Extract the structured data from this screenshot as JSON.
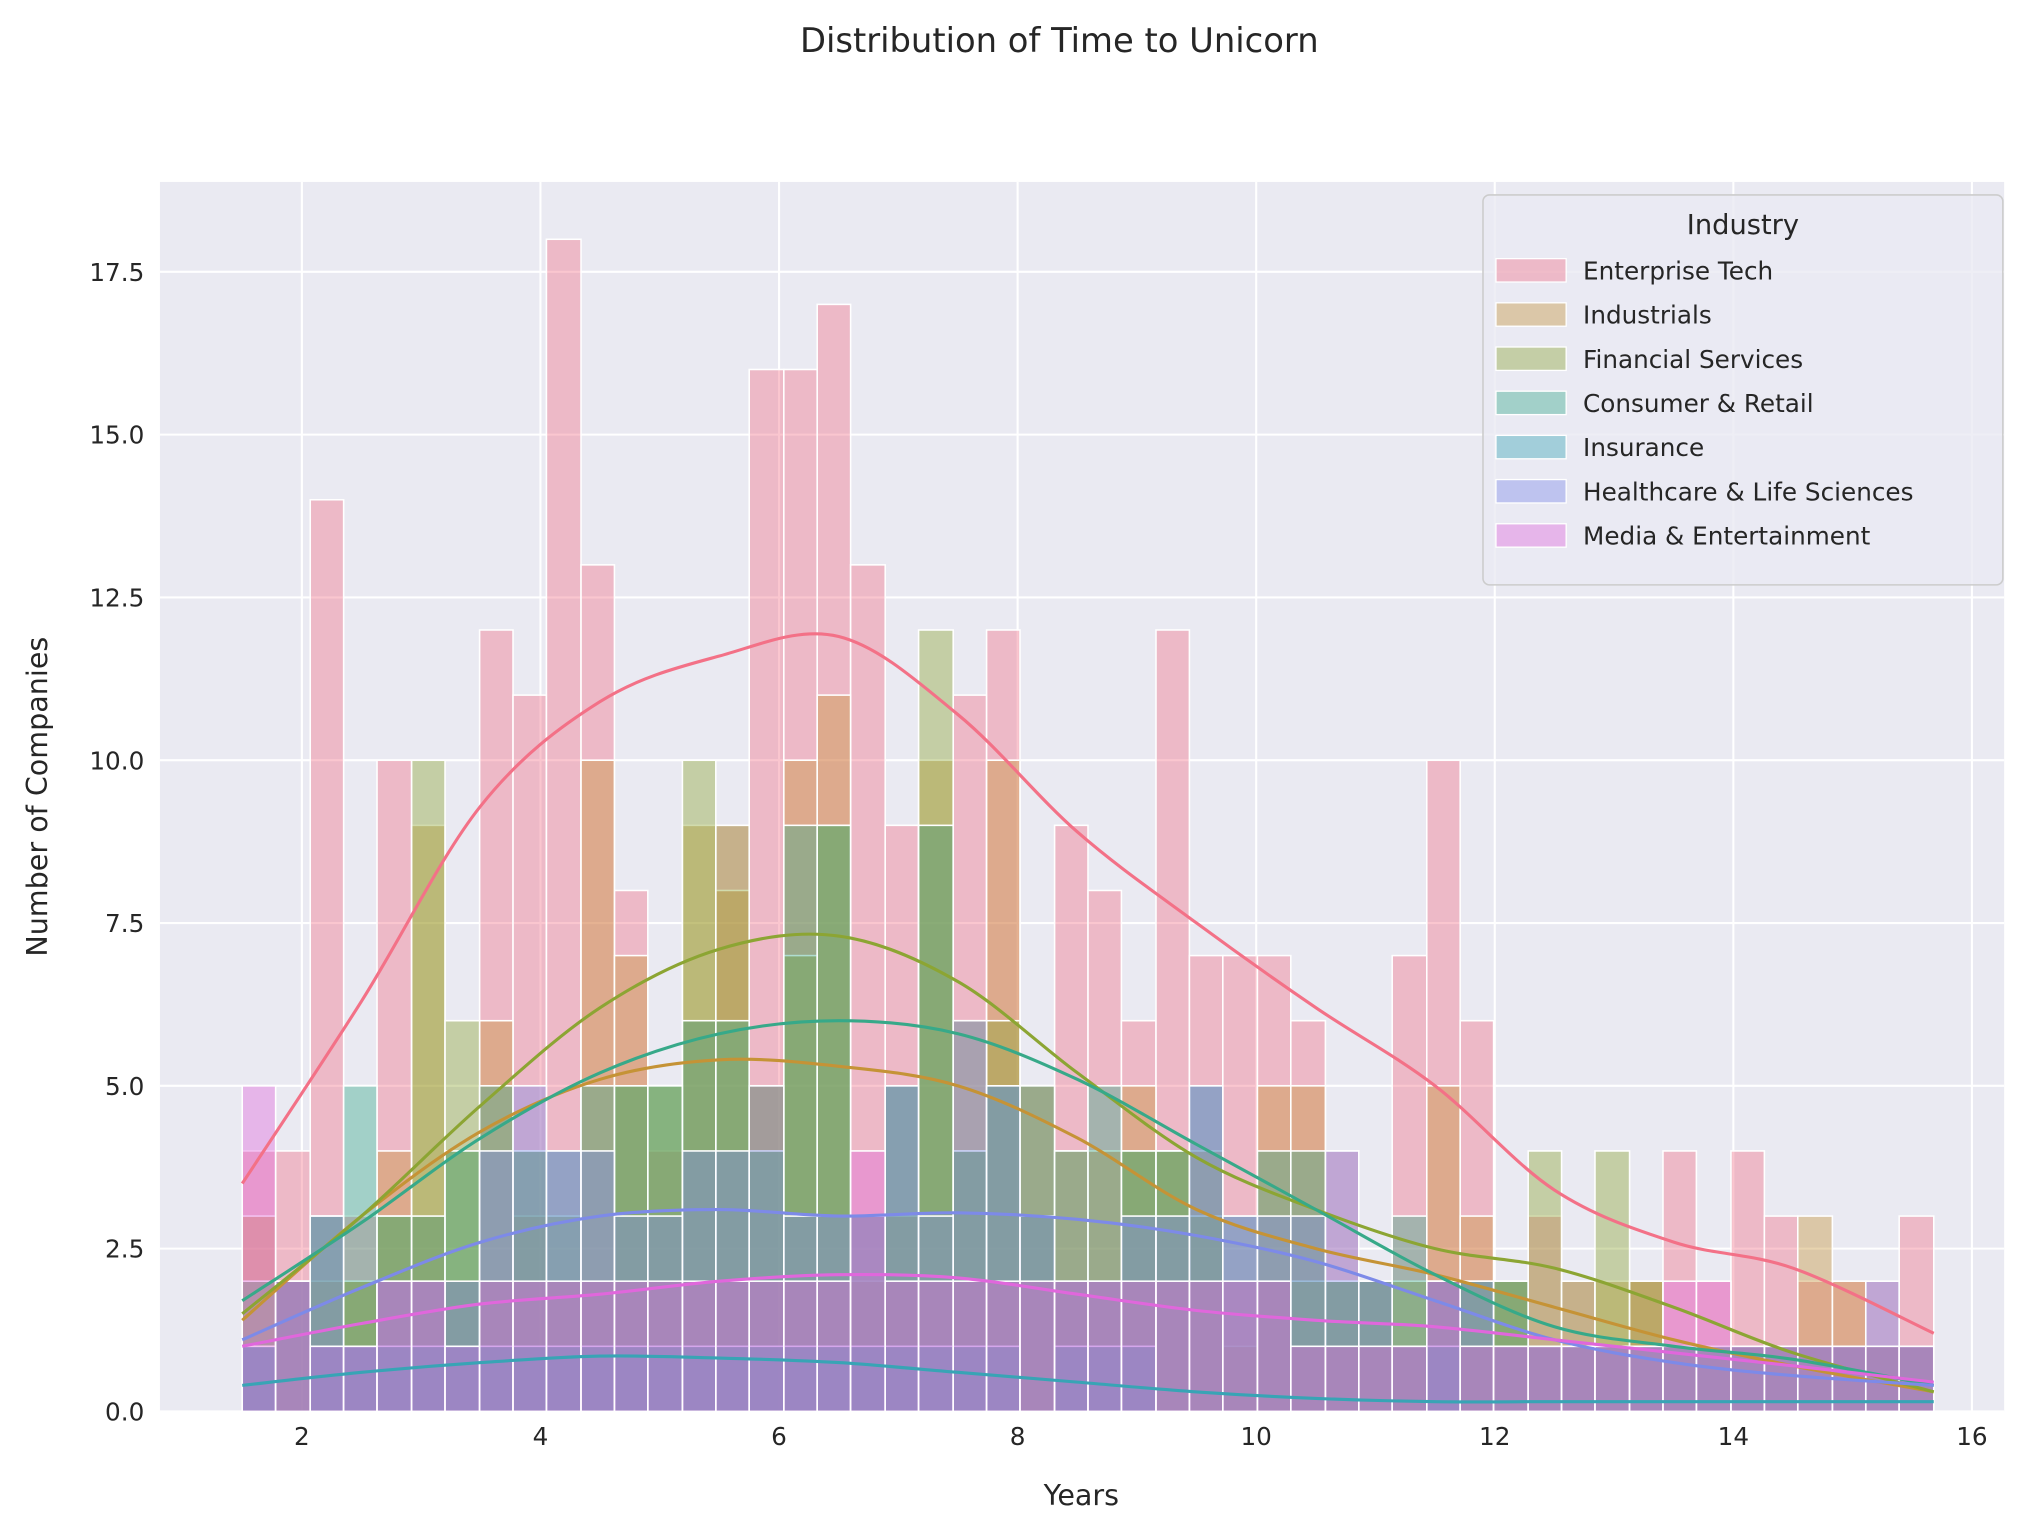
{
  "chart_data": {
    "type": "histogram",
    "title": "Distribution of Time to Unicorn",
    "x_label": "Years",
    "y_label": "Number of Companies",
    "legend_title": "Industry",
    "legend_position": "upper right",
    "grid": true,
    "xlim": [
      0.81,
      16.27
    ],
    "ylim": [
      0,
      18.88
    ],
    "xticks": [
      2,
      4,
      6,
      8,
      10,
      12,
      14,
      16
    ],
    "yticks": [
      {
        "value": 0,
        "label": "0.0"
      },
      2.5,
      {
        "value": 5,
        "label": "5.0"
      },
      7.5,
      {
        "value": 10,
        "label": "10.0"
      },
      12.5,
      {
        "value": 15,
        "label": "15.0"
      },
      17.5
    ],
    "bins": [
      1.5,
      1.78,
      2.07,
      2.35,
      2.63,
      2.92,
      3.2,
      3.49,
      3.77,
      4.05,
      4.34,
      4.62,
      4.9,
      5.19,
      5.47,
      5.75,
      6.04,
      6.32,
      6.6,
      6.89,
      7.17,
      7.46,
      7.74,
      8.02,
      8.31,
      8.59,
      8.87,
      9.16,
      9.44,
      9.72,
      10.01,
      10.29,
      10.58,
      10.86,
      11.14,
      11.43,
      11.71,
      11.99,
      12.28,
      12.56,
      12.84,
      13.13,
      13.41,
      13.69,
      13.98,
      14.26,
      14.54,
      14.83,
      15.11,
      15.39,
      15.68
    ],
    "kde_x": [
      1.5,
      2.5,
      3.5,
      4.5,
      5.5,
      6.5,
      7.5,
      8.5,
      9.5,
      10.5,
      11.5,
      12.5,
      13.5,
      14.5,
      15.68
    ],
    "series": [
      {
        "name": "Enterprise Tech",
        "color": "#f37187",
        "values": [
          4,
          4,
          14,
          3,
          10,
          3,
          2,
          12,
          11,
          18,
          13,
          8,
          4,
          6,
          9,
          16,
          16,
          17,
          13,
          9,
          9,
          11,
          12,
          5,
          9,
          8,
          6,
          12,
          7,
          7,
          7,
          6,
          4,
          2,
          7,
          10,
          6,
          2,
          3,
          2,
          1,
          2,
          4,
          2,
          4,
          3,
          2,
          2,
          2,
          3
        ],
        "kde": [
          3.5,
          6.3,
          9.3,
          10.9,
          11.6,
          11.9,
          10.7,
          8.9,
          7.5,
          6.2,
          5.0,
          3.4,
          2.6,
          2.2,
          1.2
        ]
      },
      {
        "name": "Industrials",
        "color": "#c59336",
        "values": [
          3,
          2,
          2,
          2,
          4,
          9,
          4,
          6,
          3,
          2,
          10,
          7,
          5,
          9,
          8,
          5,
          10,
          11,
          2,
          3,
          10,
          4,
          10,
          5,
          4,
          4,
          5,
          4,
          4,
          1,
          5,
          5,
          2,
          2,
          1,
          5,
          3,
          2,
          1,
          1,
          2,
          2,
          1,
          1,
          1,
          1,
          3,
          2,
          1,
          1
        ],
        "kde": [
          1.4,
          3.0,
          4.3,
          5.1,
          5.4,
          5.3,
          5.0,
          4.2,
          3.1,
          2.5,
          2.1,
          1.6,
          1.1,
          0.7,
          0.3
        ]
      },
      {
        "name": "Financial Services",
        "color": "#8ca533",
        "values": [
          1,
          2,
          3,
          2,
          3,
          10,
          6,
          2,
          4,
          3,
          2,
          5,
          5,
          10,
          9,
          5,
          7,
          9,
          3,
          5,
          12,
          6,
          6,
          3,
          2,
          2,
          4,
          4,
          3,
          2,
          2,
          2,
          2,
          2,
          2,
          2,
          2,
          2,
          4,
          2,
          4,
          2,
          1,
          1,
          1,
          1,
          1,
          1,
          1,
          1
        ],
        "kde": [
          1.5,
          3.0,
          4.7,
          6.2,
          7.1,
          7.3,
          6.6,
          5.2,
          3.9,
          3.1,
          2.5,
          2.2,
          1.6,
          0.9,
          0.3
        ]
      },
      {
        "name": "Consumer & Retail",
        "color": "#37a989",
        "values": [
          2,
          2,
          3,
          5,
          3,
          3,
          4,
          5,
          4,
          4,
          5,
          5,
          5,
          6,
          6,
          4,
          9,
          9,
          3,
          5,
          9,
          4,
          5,
          5,
          4,
          5,
          4,
          4,
          5,
          3,
          4,
          4,
          2,
          2,
          3,
          2,
          2,
          2,
          1,
          1,
          1,
          1,
          1,
          1,
          1,
          1,
          1,
          1,
          1,
          1
        ],
        "kde": [
          1.7,
          2.9,
          4.2,
          5.2,
          5.8,
          6.0,
          5.8,
          5.1,
          4.1,
          3.1,
          2.1,
          1.3,
          1.0,
          0.8,
          0.4
        ]
      },
      {
        "name": "Insurance",
        "color": "#38a4b5",
        "values": [
          1,
          0,
          1,
          1,
          1,
          1,
          1,
          1,
          1,
          1,
          1,
          1,
          1,
          1,
          1,
          1,
          1,
          1,
          1,
          1,
          1,
          1,
          1,
          0,
          1,
          1,
          1,
          0,
          0,
          0,
          0,
          0,
          0,
          0,
          0,
          1,
          0,
          0,
          0,
          0,
          0,
          0,
          0,
          0,
          0,
          0,
          0,
          0,
          0,
          0
        ],
        "kde": [
          0.4,
          0.6,
          0.75,
          0.85,
          0.82,
          0.75,
          0.6,
          0.45,
          0.3,
          0.2,
          0.15,
          0.15,
          0.15,
          0.15,
          0.15
        ]
      },
      {
        "name": "Healthcare & Life Sciences",
        "color": "#7d8ae8",
        "values": [
          1,
          2,
          3,
          1,
          2,
          2,
          2,
          4,
          5,
          4,
          4,
          3,
          3,
          4,
          4,
          5,
          3,
          3,
          3,
          5,
          3,
          6,
          5,
          3,
          2,
          2,
          3,
          3,
          5,
          3,
          3,
          3,
          4,
          2,
          1,
          2,
          2,
          1,
          1,
          1,
          1,
          1,
          1,
          1,
          1,
          1,
          1,
          1,
          2,
          1
        ],
        "kde": [
          1.1,
          1.9,
          2.6,
          3.0,
          3.1,
          3.0,
          3.05,
          2.95,
          2.7,
          2.3,
          1.7,
          1.1,
          0.75,
          0.55,
          0.4
        ]
      },
      {
        "name": "Media & Entertainment",
        "color": "#e067dc",
        "values": [
          5,
          2,
          1,
          1,
          2,
          2,
          1,
          2,
          2,
          2,
          2,
          2,
          2,
          2,
          2,
          2,
          2,
          2,
          4,
          2,
          2,
          2,
          2,
          2,
          2,
          2,
          2,
          2,
          2,
          2,
          2,
          1,
          1,
          1,
          1,
          2,
          1,
          1,
          1,
          1,
          1,
          1,
          2,
          2,
          1,
          1,
          1,
          1,
          1,
          1
        ],
        "kde": [
          1.0,
          1.35,
          1.65,
          1.8,
          2.0,
          2.1,
          2.05,
          1.8,
          1.55,
          1.4,
          1.3,
          1.1,
          0.9,
          0.7,
          0.45
        ]
      }
    ]
  }
}
